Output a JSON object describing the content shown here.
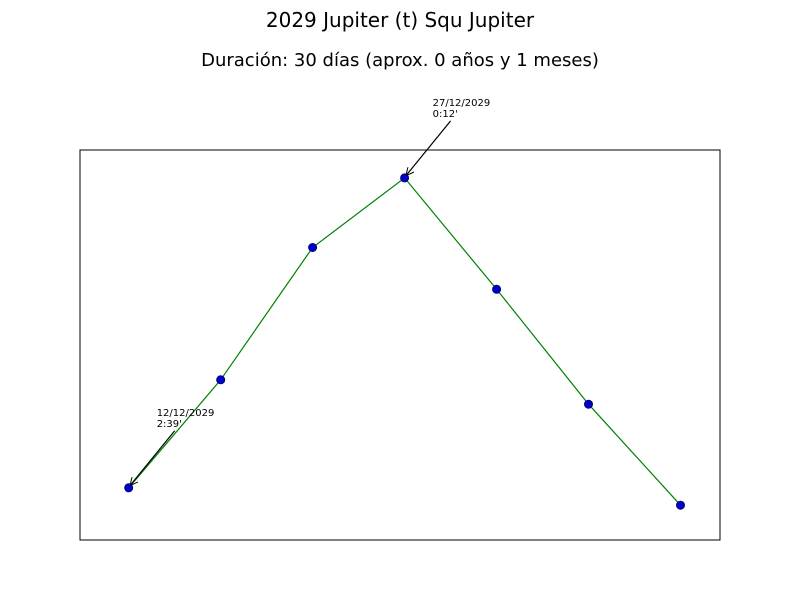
{
  "chart_data": {
    "type": "line",
    "title": "2029 Jupiter (t) Squ Jupiter",
    "subtitle": "Duración: 30 días (aprox. 0 años y 1 meses)",
    "xlabel": "",
    "ylabel": "",
    "grid": false,
    "x": [
      0,
      1,
      2,
      3,
      4,
      5,
      6
    ],
    "values": [
      0.05,
      0.36,
      0.74,
      0.94,
      0.62,
      0.29,
      0.0
    ],
    "ylim": [
      -0.1,
      1.02
    ],
    "xlim": [
      -0.53,
      6.43
    ],
    "line_color": "#008000",
    "marker_face": "#0000cc",
    "marker_edge": "#000080",
    "annotations": [
      {
        "index": 0,
        "date": "12/12/2029",
        "value": "2:39'"
      },
      {
        "index": 3,
        "date": "27/12/2029",
        "value": "0:12'"
      }
    ]
  }
}
